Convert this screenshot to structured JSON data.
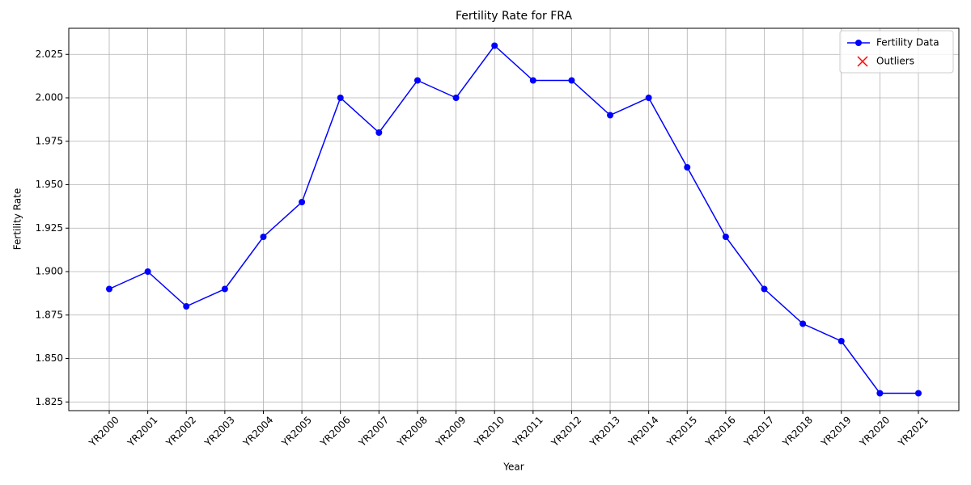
{
  "chart_data": {
    "type": "line",
    "title": "Fertility Rate for FRA",
    "xlabel": "Year",
    "ylabel": "Fertility Rate",
    "categories": [
      "YR2000",
      "YR2001",
      "YR2002",
      "YR2003",
      "YR2004",
      "YR2005",
      "YR2006",
      "YR2007",
      "YR2008",
      "YR2009",
      "YR2010",
      "YR2011",
      "YR2012",
      "YR2013",
      "YR2014",
      "YR2015",
      "YR2016",
      "YR2017",
      "YR2018",
      "YR2019",
      "YR2020",
      "YR2021"
    ],
    "series": [
      {
        "name": "Fertility Data",
        "color": "#0000ff",
        "marker": "o",
        "values": [
          1.89,
          1.9,
          1.88,
          1.89,
          1.92,
          1.94,
          2.0,
          1.98,
          2.01,
          2.0,
          2.03,
          2.01,
          2.01,
          1.99,
          2.0,
          1.96,
          1.92,
          1.89,
          1.87,
          1.86,
          1.83,
          1.83
        ]
      },
      {
        "name": "Outliers",
        "color": "#ff0000",
        "marker": "x",
        "values": [
          null,
          null,
          null,
          null,
          null,
          null,
          null,
          null,
          null,
          null,
          null,
          null,
          null,
          null,
          null,
          null,
          null,
          null,
          null,
          null,
          null,
          null
        ]
      }
    ],
    "ylim": [
      1.82,
      2.04
    ],
    "yticks": [
      1.825,
      {
        "value": 1.85,
        "label": "1.850"
      },
      1.875,
      {
        "value": 1.9,
        "label": "1.900"
      },
      1.925,
      {
        "value": 1.95,
        "label": "1.950"
      },
      1.975,
      {
        "value": 2.0,
        "label": "2.000"
      },
      2.025
    ],
    "grid": true,
    "legend": "upper right"
  }
}
